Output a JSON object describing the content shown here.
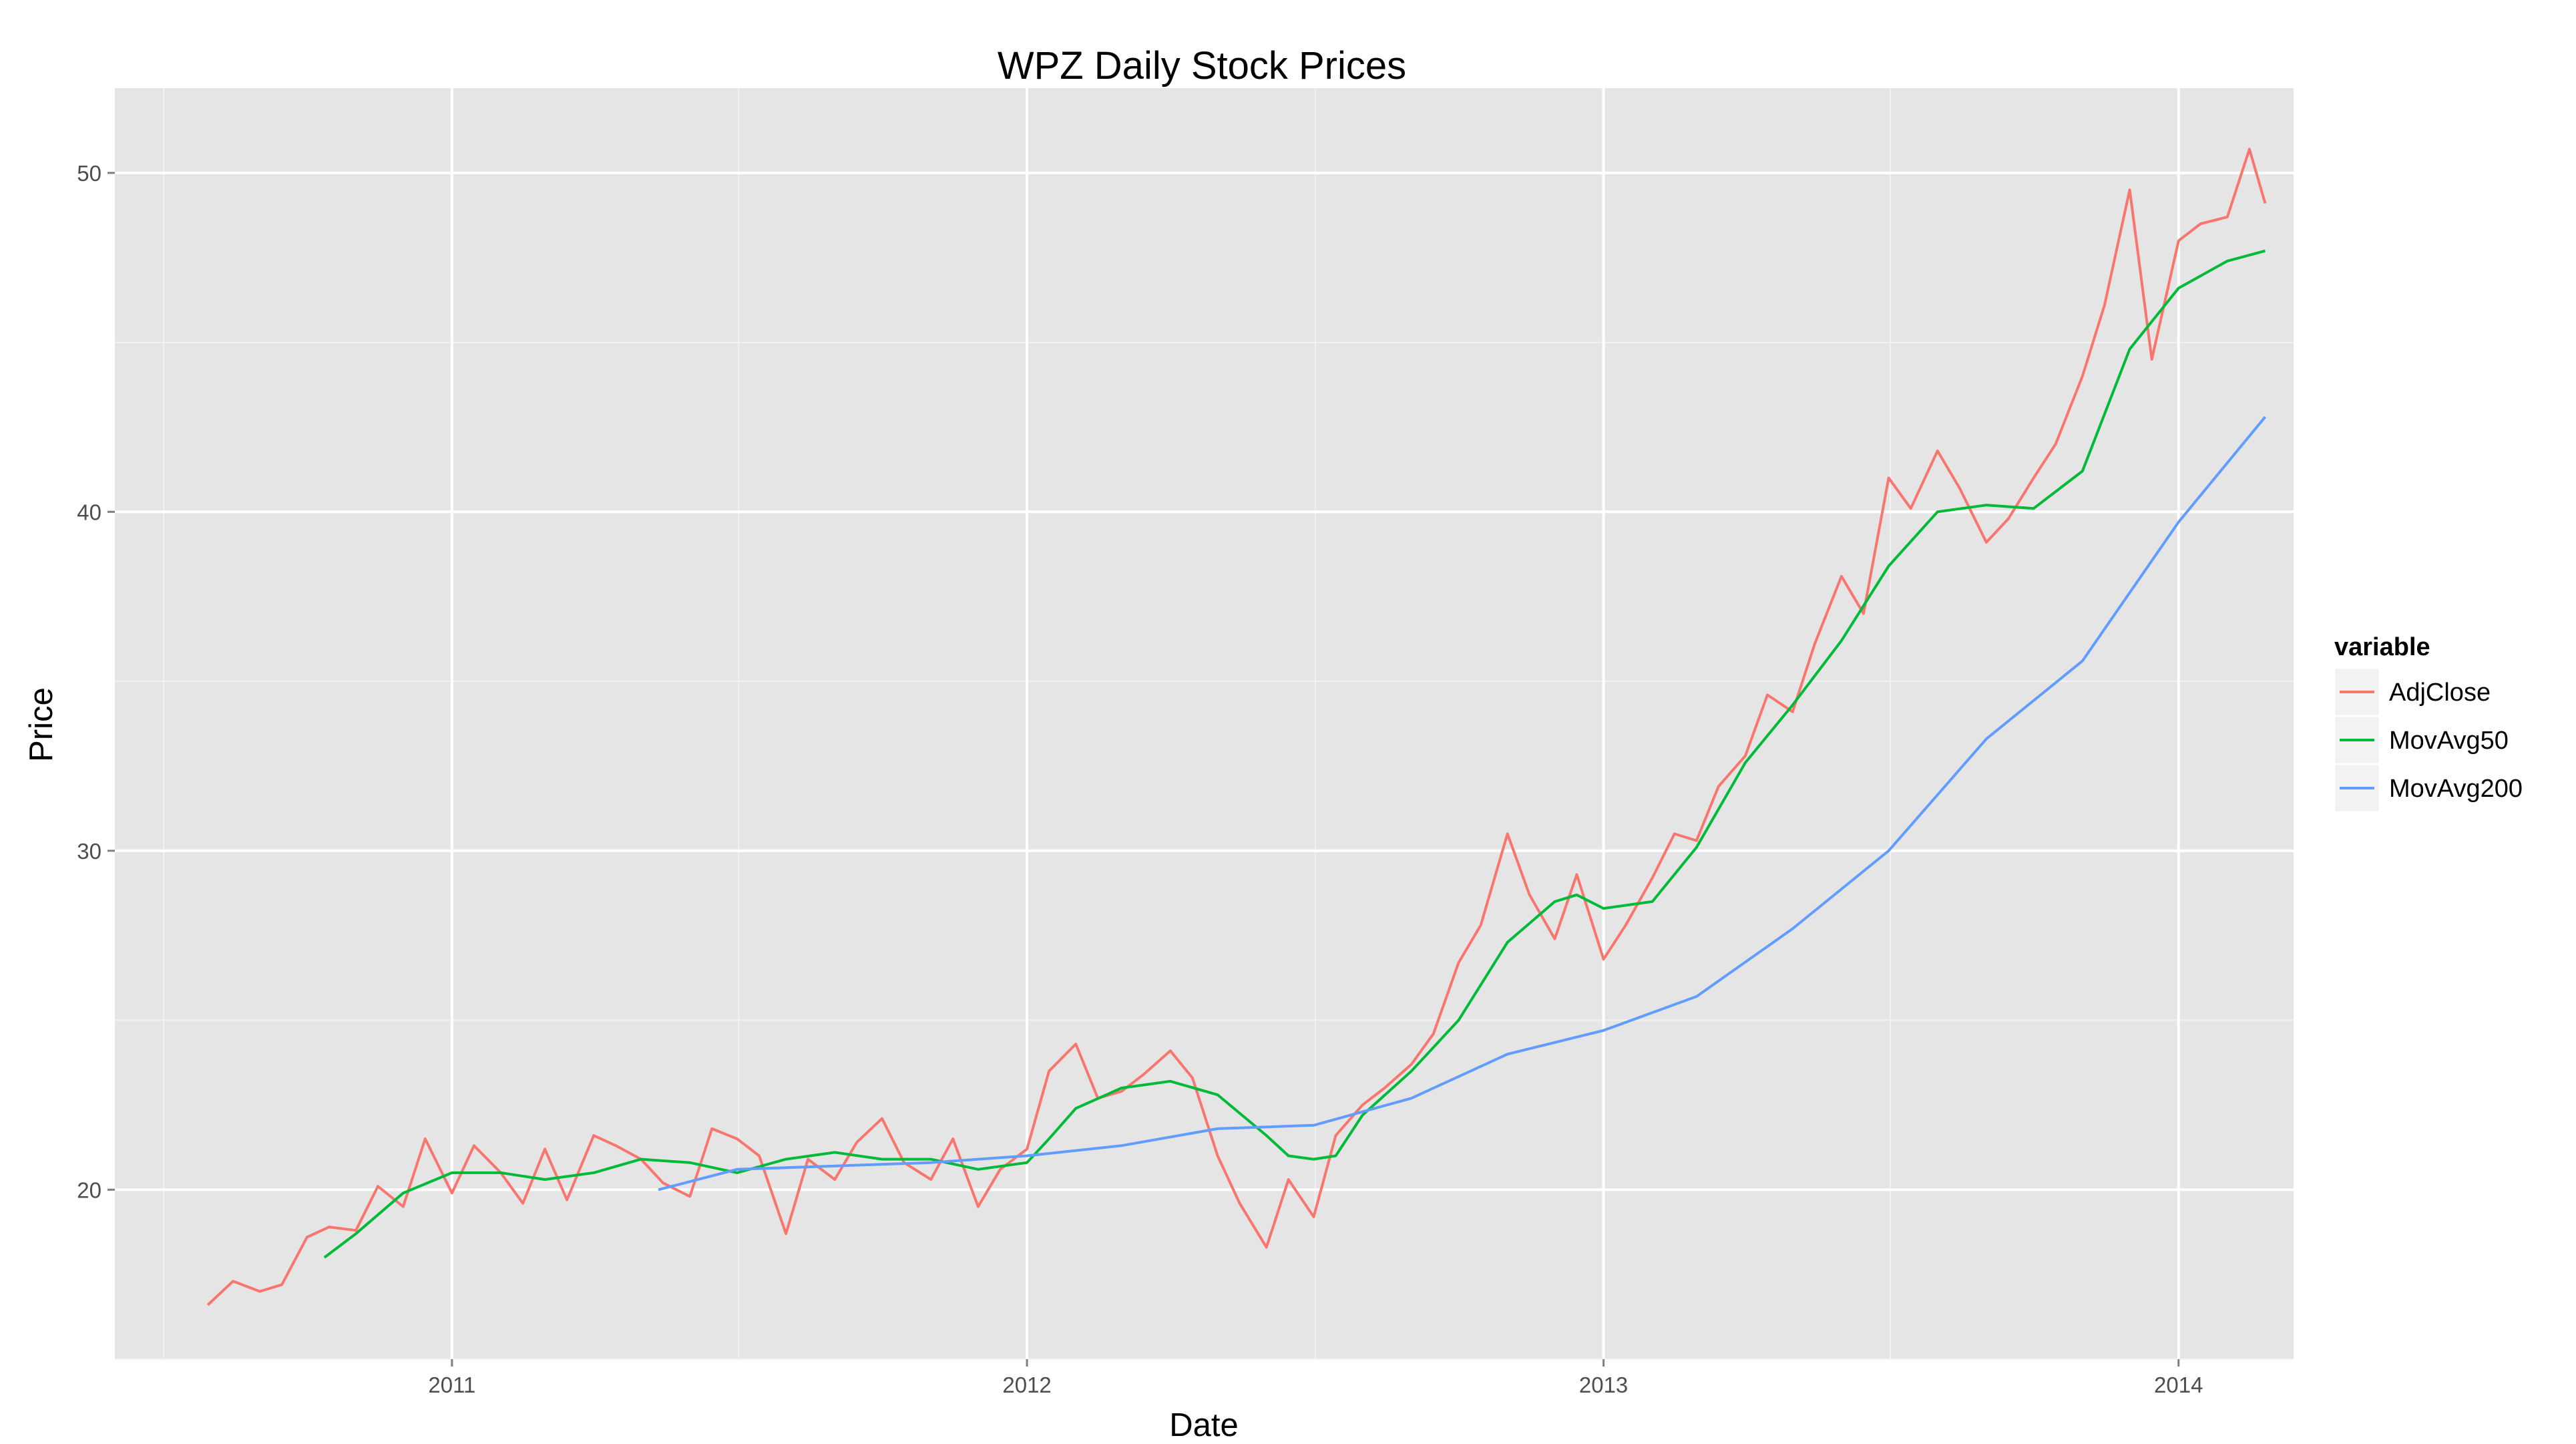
{
  "chart_data": {
    "type": "line",
    "title": "WPZ Daily Stock Prices",
    "xlabel": "Date",
    "ylabel": "Price",
    "x_ticks": [
      "2011",
      "2012",
      "2013",
      "2014"
    ],
    "y_ticks": [
      20,
      30,
      40,
      50
    ],
    "xlim": [
      "2010-06-01",
      "2014-03-15"
    ],
    "ylim": [
      15,
      52.5
    ],
    "grid": true,
    "legend": {
      "title": "variable",
      "position": "right"
    },
    "series": [
      {
        "name": "AdjClose",
        "color": "#F8766D",
        "dates": [
          "2010-07-30",
          "2010-08-15",
          "2010-09-01",
          "2010-09-15",
          "2010-10-01",
          "2010-10-15",
          "2010-11-01",
          "2010-11-15",
          "2010-12-01",
          "2010-12-15",
          "2011-01-01",
          "2011-01-15",
          "2011-02-01",
          "2011-02-15",
          "2011-03-01",
          "2011-03-15",
          "2011-04-01",
          "2011-04-15",
          "2011-05-01",
          "2011-05-15",
          "2011-06-01",
          "2011-06-15",
          "2011-07-01",
          "2011-07-15",
          "2011-08-01",
          "2011-08-15",
          "2011-09-01",
          "2011-09-15",
          "2011-10-01",
          "2011-10-15",
          "2011-11-01",
          "2011-11-15",
          "2011-12-01",
          "2011-12-15",
          "2012-01-01",
          "2012-01-15",
          "2012-02-01",
          "2012-02-15",
          "2012-03-01",
          "2012-03-15",
          "2012-04-01",
          "2012-04-15",
          "2012-05-01",
          "2012-05-15",
          "2012-06-01",
          "2012-06-15",
          "2012-07-01",
          "2012-07-15",
          "2012-08-01",
          "2012-08-15",
          "2012-09-01",
          "2012-09-15",
          "2012-10-01",
          "2012-10-15",
          "2012-11-01",
          "2012-11-15",
          "2012-12-01",
          "2012-12-15",
          "2013-01-01",
          "2013-01-15",
          "2013-02-01",
          "2013-02-15",
          "2013-03-01",
          "2013-03-15",
          "2013-04-01",
          "2013-04-15",
          "2013-05-01",
          "2013-05-15",
          "2013-06-01",
          "2013-06-15",
          "2013-07-01",
          "2013-07-15",
          "2013-08-01",
          "2013-08-15",
          "2013-09-01",
          "2013-09-15",
          "2013-10-01",
          "2013-10-15",
          "2013-11-01",
          "2013-11-15",
          "2013-12-01",
          "2013-12-15",
          "2014-01-01",
          "2014-01-15",
          "2014-02-01",
          "2014-02-15",
          "2014-02-25"
        ],
        "values": [
          16.6,
          17.3,
          17.0,
          17.2,
          18.6,
          18.9,
          18.8,
          20.1,
          19.5,
          21.5,
          19.9,
          21.3,
          20.5,
          19.6,
          21.2,
          19.7,
          21.6,
          21.3,
          20.9,
          20.2,
          19.8,
          21.8,
          21.5,
          21.0,
          18.7,
          20.9,
          20.3,
          21.4,
          22.1,
          20.8,
          20.3,
          21.5,
          19.5,
          20.6,
          21.2,
          23.5,
          24.3,
          22.7,
          22.9,
          23.4,
          24.1,
          23.3,
          21.0,
          19.6,
          18.3,
          20.3,
          19.2,
          21.6,
          22.5,
          23.0,
          23.7,
          24.6,
          26.7,
          27.8,
          30.5,
          28.7,
          27.4,
          29.3,
          26.8,
          27.8,
          29.2,
          30.5,
          30.3,
          31.9,
          32.8,
          34.6,
          34.1,
          36.1,
          38.1,
          37.0,
          41.0,
          40.1,
          41.8,
          40.7,
          39.1,
          39.8,
          41.0,
          42.0,
          44.0,
          46.1,
          49.5,
          44.5,
          48.0,
          48.5,
          48.7,
          50.7,
          49.1
        ]
      },
      {
        "name": "MovAvg50",
        "color": "#00BA38",
        "dates": [
          "2010-10-12",
          "2010-11-01",
          "2010-12-01",
          "2011-01-01",
          "2011-02-01",
          "2011-03-01",
          "2011-04-01",
          "2011-05-01",
          "2011-06-01",
          "2011-07-01",
          "2011-08-01",
          "2011-09-01",
          "2011-10-01",
          "2011-11-01",
          "2011-12-01",
          "2012-01-01",
          "2012-01-15",
          "2012-02-01",
          "2012-03-01",
          "2012-04-01",
          "2012-05-01",
          "2012-06-01",
          "2012-06-15",
          "2012-07-01",
          "2012-07-15",
          "2012-08-01",
          "2012-09-01",
          "2012-10-01",
          "2012-11-01",
          "2012-12-01",
          "2012-12-15",
          "2013-01-01",
          "2013-02-01",
          "2013-03-01",
          "2013-04-01",
          "2013-05-01",
          "2013-06-01",
          "2013-07-01",
          "2013-08-01",
          "2013-09-01",
          "2013-10-01",
          "2013-11-01",
          "2013-12-01",
          "2014-01-01",
          "2014-02-01",
          "2014-02-25"
        ],
        "values": [
          18.0,
          18.7,
          19.9,
          20.5,
          20.5,
          20.3,
          20.5,
          20.9,
          20.8,
          20.5,
          20.9,
          21.1,
          20.9,
          20.9,
          20.6,
          20.8,
          21.5,
          22.4,
          23.0,
          23.2,
          22.8,
          21.6,
          21.0,
          20.9,
          21.0,
          22.2,
          23.5,
          25.0,
          27.3,
          28.5,
          28.7,
          28.3,
          28.5,
          30.1,
          32.6,
          34.3,
          36.2,
          38.4,
          40.0,
          40.2,
          40.1,
          41.2,
          44.8,
          46.6,
          47.4,
          47.7
        ]
      },
      {
        "name": "MovAvg200",
        "color": "#619CFF",
        "dates": [
          "2011-05-12",
          "2011-07-01",
          "2011-09-01",
          "2011-11-01",
          "2012-01-01",
          "2012-03-01",
          "2012-05-01",
          "2012-07-01",
          "2012-09-01",
          "2012-11-01",
          "2013-01-01",
          "2013-03-01",
          "2013-05-01",
          "2013-07-01",
          "2013-09-01",
          "2013-11-01",
          "2014-01-01",
          "2014-02-25"
        ],
        "values": [
          20.0,
          20.6,
          20.7,
          20.8,
          21.0,
          21.3,
          21.8,
          21.9,
          22.7,
          24.0,
          24.7,
          25.7,
          27.7,
          30.0,
          33.3,
          35.6,
          39.7,
          42.8
        ]
      }
    ]
  }
}
